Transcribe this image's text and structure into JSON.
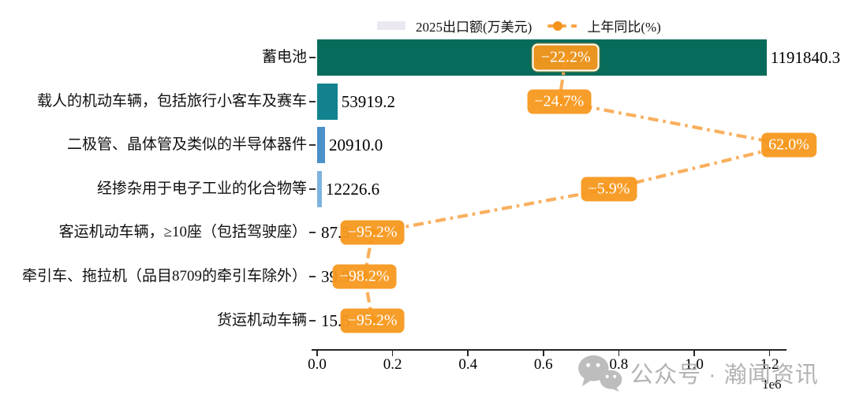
{
  "legend": {
    "bar_label": "2025出口额(万美元)",
    "line_label": "上年同比(%)"
  },
  "chart_data": {
    "type": "bar",
    "orientation": "horizontal",
    "series": [
      {
        "name": "2025出口额(万美元)",
        "type": "bar"
      },
      {
        "name": "上年同比(%)",
        "type": "line"
      }
    ],
    "x_axis": {
      "ticks": [
        "0.0",
        "0.2",
        "0.4",
        "0.6",
        "0.8",
        "1.0",
        "1.2"
      ],
      "tick_values": [
        0,
        200000,
        400000,
        600000,
        800000,
        1000000,
        1200000
      ],
      "offset_label": "1e6",
      "xlim": [
        0,
        1244000
      ]
    },
    "rows": [
      {
        "category": "蓄电池",
        "value": 1191840.3,
        "value_label": "1191840.3",
        "pct": -22.2,
        "pct_label": "−22.2%",
        "bar_color": "#066b5a",
        "highlight": true
      },
      {
        "category": "载人的机动车辆，包括旅行小客车及赛车",
        "value": 53919.2,
        "value_label": "53919.2",
        "pct": -24.7,
        "pct_label": "−24.7%",
        "bar_color": "#12828e",
        "highlight": false
      },
      {
        "category": "二极管、晶体管及类似的半导体器件",
        "value": 20910.0,
        "value_label": "20910.0",
        "pct": 62.0,
        "pct_label": "62.0%",
        "bar_color": "#4a90c9",
        "highlight": false
      },
      {
        "category": "经掺杂用于电子工业的化合物等",
        "value": 12226.6,
        "value_label": "12226.6",
        "pct": -5.9,
        "pct_label": "−5.9%",
        "bar_color": "#7fb3de",
        "highlight": false
      },
      {
        "category": "客运机动车辆，≥10座（包括驾驶座）",
        "value": 87.5,
        "value_label": "87.5",
        "pct": -95.2,
        "pct_label": "−95.2%",
        "bar_color": "#7fb3de",
        "highlight": false
      },
      {
        "category": "牵引车、拖拉机（品目8709的牵引车除外）",
        "value": 39.9,
        "value_label": "39.9",
        "pct": -98.2,
        "pct_label": "−98.2%",
        "bar_color": "#7fb3de",
        "highlight": false
      },
      {
        "category": "货运机动车辆",
        "value": 15.5,
        "value_label": "15.5",
        "pct": -95.2,
        "pct_label": "−95.2%",
        "bar_color": "#7fb3de",
        "highlight": false
      }
    ],
    "colors": {
      "badge": "#f8981d",
      "trend_line": "#f9a84f",
      "legend_swatch": "#ece8f2"
    }
  },
  "watermark": {
    "text": "公众号 · 瀚闻资讯",
    "icon": "wechat-icon"
  }
}
